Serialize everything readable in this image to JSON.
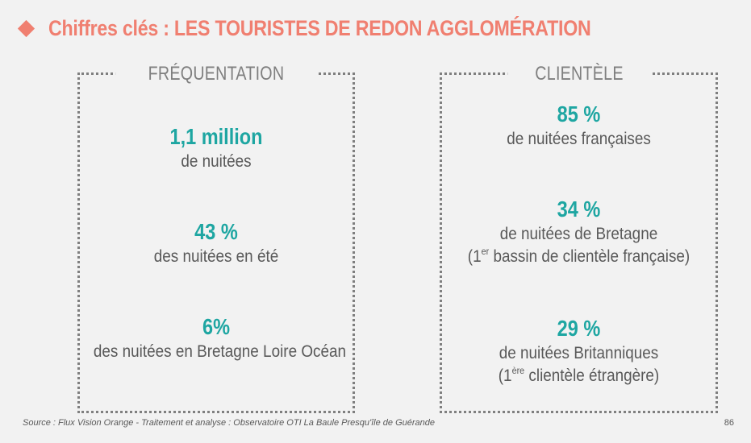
{
  "header": {
    "title": "Chiffres clés : LES TOURISTES DE REDON AGGLOMÉRATION",
    "bullet_icon": "diamond-bullet-icon"
  },
  "frequentation": {
    "heading": "FRÉQUENTATION",
    "stats": [
      {
        "value": "1,1 million",
        "desc": "de nuitées"
      },
      {
        "value": "43 %",
        "desc": "des nuitées en été"
      },
      {
        "value": "6%",
        "desc": "des nuitées en Bretagne Loire Océan"
      }
    ]
  },
  "clientele": {
    "heading": "CLIENTÈLE",
    "stats": [
      {
        "value": "85 %",
        "desc": "de nuitées françaises"
      },
      {
        "value": "34 %",
        "desc": "de nuitées de Bretagne",
        "note_prefix": "(1",
        "note_sup": "er",
        "note_rest": " bassin de clientèle française)"
      },
      {
        "value": "29 %",
        "desc": "de nuitées Britanniques",
        "note_prefix": "(1",
        "note_sup": "ère",
        "note_rest": " clientèle étrangère)"
      }
    ]
  },
  "footer": {
    "source": "Source : Flux Vision Orange - Traitement et analyse : Observatoire OTI La Baule Presqu'île de Guérande",
    "page_number": "86"
  },
  "colors": {
    "accent": "#f07f70",
    "teal": "#1ea6a2",
    "text": "#595959",
    "border": "#7f7f7f",
    "background": "#f2f2f2"
  }
}
